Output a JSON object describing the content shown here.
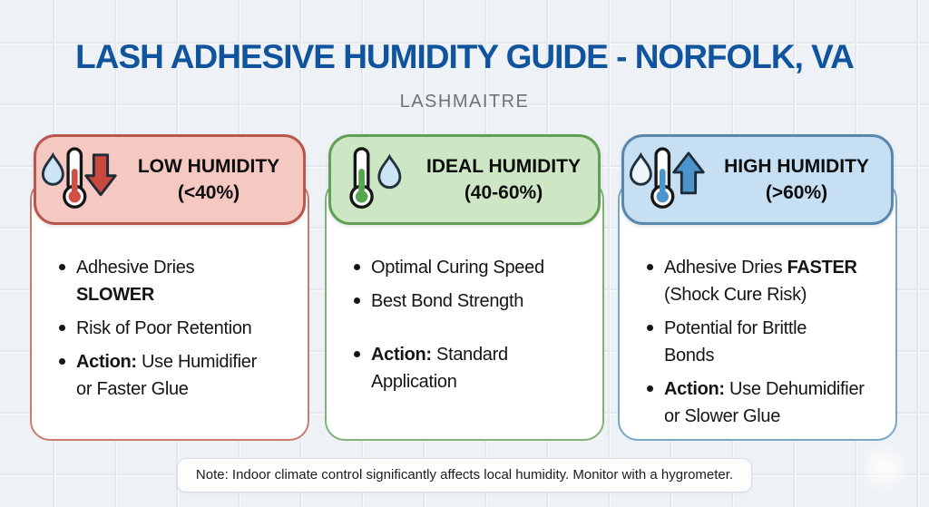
{
  "page": {
    "title": "LASH ADHESIVE HUMIDITY GUIDE - NORFOLK, VA",
    "subtitle": "LASHMAITRE",
    "note": "Note: Indoor climate control significantly affects local humidity. Monitor with a hygrometer.",
    "title_color": "#11549e",
    "background_color": "#eef1f5"
  },
  "cards": [
    {
      "id": "low-humidity",
      "title": "LOW HUMIDITY",
      "range": "(<40%)",
      "icon": {
        "name": "droplet-thermometer-down-arrow-icon",
        "droplet_fill": "#cbe4f6",
        "thermometer_fill": "#d14e43",
        "arrow_fill": "#c8493e",
        "arrow_direction": "down"
      },
      "theme": {
        "header_bg": "#f5c8c2",
        "header_border": "#b9564d",
        "body_border": "#cb7a6e"
      },
      "bullets": [
        {
          "lines": [
            [
              {
                "text": "Adhesive Dries",
                "bold": false
              }
            ],
            [
              {
                "text": "SLOWER",
                "bold": true
              }
            ]
          ]
        },
        {
          "lines": [
            [
              {
                "text": "Risk of Poor Retention",
                "bold": false
              }
            ]
          ]
        },
        {
          "lines": [
            [
              {
                "text": "Action:",
                "bold": true
              },
              {
                "text": " Use Humidifier",
                "bold": false
              }
            ],
            [
              {
                "text": "or Faster Glue",
                "bold": false
              }
            ]
          ]
        }
      ]
    },
    {
      "id": "ideal-humidity",
      "title": "IDEAL HUMIDITY",
      "range": "(40-60%)",
      "icon": {
        "name": "thermometer-droplet-icon",
        "droplet_fill": "#cbe4f6",
        "thermometer_fill": "#55a74e"
      },
      "theme": {
        "header_bg": "#cde7c4",
        "header_border": "#61a054",
        "body_border": "#7fb377"
      },
      "bullets": [
        {
          "lines": [
            [
              {
                "text": "Optimal Curing Speed",
                "bold": false
              }
            ]
          ]
        },
        {
          "lines": [
            [
              {
                "text": "Best Bond Strength",
                "bold": false
              }
            ]
          ]
        },
        {
          "spaced": true,
          "lines": [
            [
              {
                "text": "Action:",
                "bold": true
              },
              {
                "text": " Standard",
                "bold": false
              }
            ],
            [
              {
                "text": "Application",
                "bold": false
              }
            ]
          ]
        }
      ]
    },
    {
      "id": "high-humidity",
      "title": "HIGH HUMIDITY",
      "range": "(>60%)",
      "icon": {
        "name": "droplet-thermometer-up-arrow-icon",
        "droplet_fill": "#eef6fc",
        "thermometer_fill": "#4b94cc",
        "arrow_fill": "#4b94cc",
        "arrow_direction": "up"
      },
      "theme": {
        "header_bg": "#c6dff3",
        "header_border": "#5a87ad",
        "body_border": "#7ba6c6"
      },
      "bullets": [
        {
          "lines": [
            [
              {
                "text": "Adhesive Dries ",
                "bold": false
              },
              {
                "text": "FASTER",
                "bold": true
              }
            ],
            [
              {
                "text": "(Shock Cure Risk)",
                "bold": false
              }
            ]
          ]
        },
        {
          "lines": [
            [
              {
                "text": "Potential for Brittle",
                "bold": false
              }
            ],
            [
              {
                "text": "Bonds",
                "bold": false
              }
            ]
          ]
        },
        {
          "lines": [
            [
              {
                "text": "Action:",
                "bold": true
              },
              {
                "text": " Use Dehumidifier",
                "bold": false
              }
            ],
            [
              {
                "text": "or Slower Glue",
                "bold": false
              }
            ]
          ]
        }
      ]
    }
  ]
}
